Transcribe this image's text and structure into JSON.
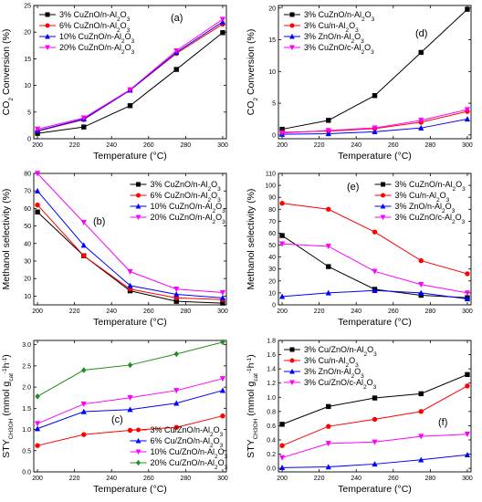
{
  "chart_data": [
    {
      "type": "line",
      "panel_label": "(a)",
      "x": [
        200,
        225,
        250,
        275,
        300
      ],
      "xlim": [
        198,
        302
      ],
      "xticks": [
        200,
        220,
        240,
        260,
        280,
        300
      ],
      "xlabel": "Temperature (°C)",
      "ylabel": {
        "main": "CO",
        "sub": "2",
        "rest": " Conversion (%)"
      },
      "ylim": [
        0,
        25
      ],
      "yticks": [
        0,
        5,
        10,
        15,
        20,
        25
      ],
      "legend_position": "top-left",
      "series": [
        {
          "name": {
            "main": "3% CuZnO/n-Al",
            "sub": "2",
            "mid": "O",
            "sub2": "3"
          },
          "color": "#000000",
          "marker": "square",
          "values": [
            1.0,
            2.2,
            6.2,
            13.0,
            19.9
          ]
        },
        {
          "name": {
            "main": "6% CuZnO/n-Al",
            "sub": "2",
            "mid": "O",
            "sub2": "3"
          },
          "color": "#ff0000",
          "marker": "circle",
          "values": [
            1.4,
            3.6,
            9.1,
            16.0,
            21.5
          ]
        },
        {
          "name": {
            "main": "10% CuZnO/n-Al",
            "sub": "2",
            "mid": "O",
            "sub2": "3"
          },
          "color": "#0000ff",
          "marker": "triangle-up",
          "values": [
            1.5,
            3.7,
            9.1,
            16.2,
            21.9
          ]
        },
        {
          "name": {
            "main": "20% CuZnO/n-Al",
            "sub": "2",
            "mid": "O",
            "sub2": "3"
          },
          "color": "#ff00ff",
          "marker": "triangle-down",
          "values": [
            1.8,
            3.9,
            9.2,
            16.5,
            22.4
          ]
        }
      ]
    },
    {
      "type": "line",
      "panel_label": "(d)",
      "x": [
        200,
        225,
        250,
        275,
        300
      ],
      "xlim": [
        198,
        302
      ],
      "xticks": [
        200,
        220,
        240,
        260,
        280,
        300
      ],
      "xlabel": "Temperature (°C)",
      "ylabel": {
        "main": "CO",
        "sub": "2",
        "rest": " Conversion (%)"
      },
      "ylim": [
        -0.6,
        20.4
      ],
      "yticks": [
        0,
        5,
        10,
        15,
        20
      ],
      "legend_position": "top-left",
      "series": [
        {
          "name": {
            "main": "3% CuZnO/n-Al",
            "sub": "2",
            "mid": "O",
            "sub2": "3"
          },
          "color": "#000000",
          "marker": "square",
          "values": [
            0.9,
            2.3,
            6.2,
            13.0,
            19.8
          ]
        },
        {
          "name": {
            "main": "3% Cu/n-Al",
            "sub": "2",
            "mid": "O",
            "sub2": "3"
          },
          "color": "#ff0000",
          "marker": "circle",
          "values": [
            0.4,
            0.6,
            1.0,
            2.0,
            3.7
          ]
        },
        {
          "name": {
            "main": "3% ZnO/n-Al",
            "sub": "2",
            "mid": "O",
            "sub2": "3"
          },
          "color": "#0000ff",
          "marker": "triangle-up",
          "values": [
            0.1,
            0.2,
            0.5,
            1.1,
            2.5
          ]
        },
        {
          "name": {
            "main": "3% CuZnO/c-Al",
            "sub": "2",
            "mid": "O",
            "sub2": "3"
          },
          "color": "#ff00ff",
          "marker": "triangle-down",
          "values": [
            0.3,
            0.7,
            1.1,
            2.3,
            4.0
          ]
        }
      ]
    },
    {
      "type": "line",
      "panel_label": "(b)",
      "x": [
        200,
        225,
        250,
        275,
        300
      ],
      "xlim": [
        198,
        302
      ],
      "xticks": [
        200,
        220,
        240,
        260,
        280,
        300
      ],
      "xlabel": "Temperature (°C)",
      "ylabel": {
        "main": "Methanol selectivity (%)"
      },
      "ylim": [
        5,
        80
      ],
      "yticks": [
        10,
        20,
        30,
        40,
        50,
        60,
        70,
        80
      ],
      "legend_position": "top-right",
      "series": [
        {
          "name": {
            "main": "3% CuZnO/n-Al",
            "sub": "2",
            "mid": "O",
            "sub2": "3"
          },
          "color": "#000000",
          "marker": "square",
          "values": [
            58,
            33,
            13,
            7,
            6
          ]
        },
        {
          "name": {
            "main": "6% CuZnO/n-Al",
            "sub": "2",
            "mid": "O",
            "sub2": "3"
          },
          "color": "#ff0000",
          "marker": "circle",
          "values": [
            62,
            33,
            14,
            9,
            8
          ]
        },
        {
          "name": {
            "main": "10% CuZnO/n-Al",
            "sub": "2",
            "mid": "O",
            "sub2": "3"
          },
          "color": "#0000ff",
          "marker": "triangle-up",
          "values": [
            70,
            39,
            16,
            11,
            9
          ]
        },
        {
          "name": {
            "main": "20% CuZnO/n-Al",
            "sub": "2",
            "mid": "O",
            "sub2": "3"
          },
          "color": "#ff00ff",
          "marker": "triangle-down",
          "values": [
            80,
            52,
            24,
            14,
            12
          ]
        }
      ]
    },
    {
      "type": "line",
      "panel_label": "(e)",
      "x": [
        200,
        225,
        250,
        275,
        300
      ],
      "xlim": [
        198,
        302
      ],
      "xticks": [
        200,
        220,
        240,
        260,
        280,
        300
      ],
      "xlabel": "Temperature (°C)",
      "ylabel": {
        "main": "Methanol selectivity (%)"
      },
      "ylim": [
        0,
        110
      ],
      "yticks": [
        0,
        10,
        20,
        30,
        40,
        50,
        60,
        70,
        80,
        90,
        100,
        110
      ],
      "legend_position": "top-right",
      "series": [
        {
          "name": {
            "main": "3% CuZnO/n-Al",
            "sub": "2",
            "mid": "O",
            "sub2": "3"
          },
          "color": "#000000",
          "marker": "square",
          "values": [
            58,
            32,
            13,
            8,
            6
          ]
        },
        {
          "name": {
            "main": "3% Cu/n-Al",
            "sub": "2",
            "mid": "O",
            "sub2": "3"
          },
          "color": "#ff0000",
          "marker": "circle",
          "values": [
            85,
            80,
            61,
            37,
            26
          ]
        },
        {
          "name": {
            "main": "3% ZnO/n-Al",
            "sub": "2",
            "mid": "O",
            "sub2": "3"
          },
          "color": "#0000ff",
          "marker": "triangle-up",
          "values": [
            7,
            10,
            12,
            10,
            5
          ]
        },
        {
          "name": {
            "main": "3% CuZnO/c-Al",
            "sub": "2",
            "mid": "O",
            "sub2": "3"
          },
          "color": "#ff00ff",
          "marker": "triangle-down",
          "values": [
            51,
            49,
            28,
            17,
            10
          ]
        }
      ]
    },
    {
      "type": "line",
      "panel_label": "(c)",
      "x": [
        200,
        225,
        250,
        275,
        300
      ],
      "xlim": [
        198,
        302
      ],
      "xticks": [
        200,
        220,
        240,
        260,
        280,
        300
      ],
      "xlabel": "Temperature (°C)",
      "ylabel": {
        "main": "STY",
        "sub": "CH3OH",
        "rest": " (mmol g",
        "sub2": "cat",
        "sup": "-1",
        "rest2": "h",
        "sup2": "-1",
        "rest3": ")"
      },
      "ylim": [
        0,
        3.1
      ],
      "yticks": [
        0.0,
        0.5,
        1.0,
        1.5,
        2.0,
        2.5,
        3.0
      ],
      "legend_position": "bottom-right",
      "series": [
        {
          "name": {
            "main": "3% Cu/ZnO/n-Al",
            "sub": "2",
            "mid": "O",
            "sub2": "3"
          },
          "color": "#ff0000",
          "marker": "circle",
          "values": [
            0.62,
            0.88,
            0.98,
            1.05,
            1.32
          ]
        },
        {
          "name": {
            "main": "6% Cu/ZnO/n-Al",
            "sub": "2",
            "mid": "O",
            "sub2": "3"
          },
          "color": "#0000ff",
          "marker": "triangle-up",
          "values": [
            1.02,
            1.42,
            1.47,
            1.62,
            1.92
          ]
        },
        {
          "name": {
            "main": "10% Cu/ZnO/n-Al",
            "sub": "2",
            "mid": "O",
            "sub2": "3"
          },
          "color": "#ff00ff",
          "marker": "triangle-down",
          "values": [
            1.14,
            1.6,
            1.75,
            1.92,
            2.2
          ]
        },
        {
          "name": {
            "main": "20% Cu/ZnO/n-Al",
            "sub": "2",
            "mid": "O",
            "sub2": "3"
          },
          "color": "#228b22",
          "marker": "diamond",
          "values": [
            1.78,
            2.4,
            2.52,
            2.78,
            3.06
          ]
        }
      ]
    },
    {
      "type": "line",
      "panel_label": "(f)",
      "x": [
        200,
        225,
        250,
        275,
        300
      ],
      "xlim": [
        198,
        302
      ],
      "xticks": [
        200,
        220,
        240,
        260,
        280,
        300
      ],
      "xlabel": "Temperature (°C)",
      "ylabel": {
        "main": "STY",
        "sub": "CH3OH",
        "rest": " (mmol g",
        "sub2": "cat",
        "sup": "-1",
        "rest2": "h",
        "sup2": "-1",
        "rest3": ")"
      },
      "ylim": [
        -0.05,
        1.8
      ],
      "yticks": [
        0.0,
        0.2,
        0.4,
        0.6,
        0.8,
        1.0,
        1.2,
        1.4,
        1.6,
        1.8
      ],
      "legend_position": "top-left",
      "series": [
        {
          "name": {
            "main": "3% Cu/ZnO/n-Al",
            "sub": "2",
            "mid": "O",
            "sub2": "3"
          },
          "color": "#000000",
          "marker": "square",
          "values": [
            0.62,
            0.87,
            0.99,
            1.05,
            1.32
          ]
        },
        {
          "name": {
            "main": "3% Cu/n-Al",
            "sub": "2",
            "mid": "O",
            "sub2": "3"
          },
          "color": "#ff0000",
          "marker": "circle",
          "values": [
            0.32,
            0.59,
            0.69,
            0.8,
            1.16
          ]
        },
        {
          "name": {
            "main": "3% ZnO/n-Al",
            "sub": "2",
            "mid": "O",
            "sub2": "3"
          },
          "color": "#0000ff",
          "marker": "triangle-up",
          "values": [
            0.01,
            0.02,
            0.06,
            0.12,
            0.19
          ]
        },
        {
          "name": {
            "main": "3% Cu/ZnO/c-Al",
            "sub": "2",
            "mid": "O",
            "sub2": "3"
          },
          "color": "#ff00ff",
          "marker": "triangle-down",
          "values": [
            0.15,
            0.35,
            0.37,
            0.45,
            0.48
          ]
        }
      ]
    }
  ]
}
